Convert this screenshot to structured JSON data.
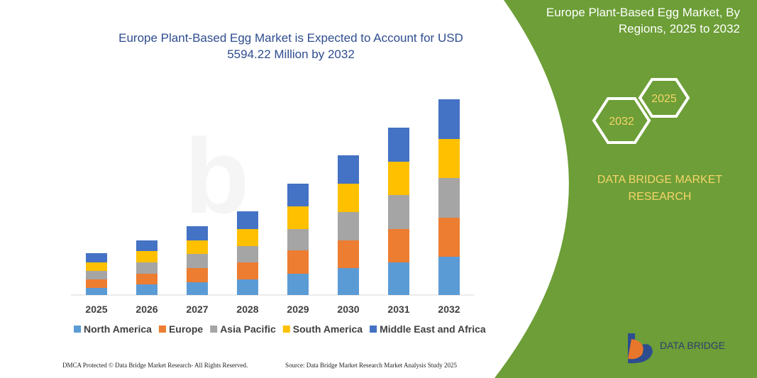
{
  "chart_data": {
    "type": "stacked_bar",
    "title": [
      "Europe Plant-Based Egg Market is Expected to Account for USD",
      "5594.22 Million by 2032"
    ],
    "categories": [
      "2025",
      "2026",
      "2027",
      "2028",
      "2029",
      "2030",
      "2031",
      "2032"
    ],
    "series": [
      {
        "name": "North America",
        "color": "#5b9bd5",
        "values": [
          10,
          15,
          18,
          22,
          30,
          38,
          46,
          54
        ]
      },
      {
        "name": "Europe",
        "color": "#ed7d31",
        "values": [
          12,
          15,
          20,
          24,
          33,
          39,
          47,
          55
        ]
      },
      {
        "name": "Asia Pacific",
        "color": "#a5a5a5",
        "values": [
          12,
          16,
          20,
          23,
          30,
          40,
          48,
          56
        ]
      },
      {
        "name": "South America",
        "color": "#ffc000",
        "values": [
          12,
          16,
          19,
          24,
          32,
          40,
          47,
          55
        ]
      },
      {
        "name": "Middle East and Africa",
        "color": "#4472c4",
        "values": [
          13,
          15,
          20,
          25,
          32,
          40,
          48,
          56
        ]
      }
    ],
    "ylim": [
      0,
      280
    ]
  },
  "panel": {
    "title": [
      "Europe Plant-Based Egg Market, By",
      "Regions, 2025 to 2032"
    ],
    "hex_end": "2032",
    "hex_start": "2025",
    "brand": [
      "DATA BRIDGE MARKET",
      "RESEARCH"
    ],
    "logo": "DATA BRIDGE"
  },
  "footer": {
    "left": "DMCA Protected © Data Bridge Market Research-  All Rights Reserved.",
    "right": "Source: Data Bridge Market Research  Market Analysis Study 2025"
  }
}
